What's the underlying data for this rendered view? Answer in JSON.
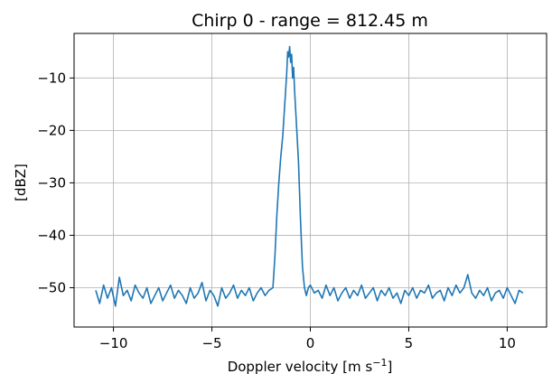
{
  "chart_data": {
    "type": "line",
    "title": "Chirp 0 - range = 812.45 m",
    "xlabel": "Doppler velocity [m s",
    "xlabel_sup": "−1",
    "xlabel_tail": "]",
    "ylabel": "[dBZ]",
    "xlim": [
      -12,
      12
    ],
    "ylim": [
      -57.5,
      -1.5
    ],
    "xticks": [
      -10,
      -5,
      0,
      5,
      10
    ],
    "xtick_labels": [
      "−10",
      "−5",
      "0",
      "5",
      "10"
    ],
    "yticks": [
      -50,
      -40,
      -30,
      -20,
      -10
    ],
    "ytick_labels": [
      "−50",
      "−40",
      "−30",
      "−20",
      "−10"
    ],
    "grid": true,
    "legend": "none",
    "series_color": "#1f77b4",
    "series": [
      {
        "x": [
          -10.9,
          -10.7,
          -10.5,
          -10.3,
          -10.1,
          -9.9,
          -9.7,
          -9.5,
          -9.3,
          -9.1,
          -8.9,
          -8.7,
          -8.5,
          -8.3,
          -8.1,
          -7.9,
          -7.7,
          -7.5,
          -7.3,
          -7.1,
          -6.9,
          -6.7,
          -6.5,
          -6.3,
          -6.1,
          -5.9,
          -5.7,
          -5.5,
          -5.3,
          -5.1,
          -4.9,
          -4.7,
          -4.5,
          -4.3,
          -4.1,
          -3.9,
          -3.7,
          -3.5,
          -3.3,
          -3.1,
          -2.9,
          -2.7,
          -2.5,
          -2.3,
          -2.1,
          -1.9,
          -1.8,
          -1.7,
          -1.6,
          -1.5,
          -1.4,
          -1.3,
          -1.25,
          -1.2,
          -1.15,
          -1.1,
          -1.05,
          -1.0,
          -0.95,
          -0.9,
          -0.85,
          -0.8,
          -0.7,
          -0.6,
          -0.5,
          -0.4,
          -0.3,
          -0.2,
          -0.1,
          0.0,
          0.2,
          0.4,
          0.6,
          0.8,
          1.0,
          1.2,
          1.4,
          1.6,
          1.8,
          2.0,
          2.2,
          2.4,
          2.6,
          2.8,
          3.0,
          3.2,
          3.4,
          3.6,
          3.8,
          4.0,
          4.2,
          4.4,
          4.6,
          4.8,
          5.0,
          5.2,
          5.4,
          5.6,
          5.8,
          6.0,
          6.2,
          6.4,
          6.6,
          6.8,
          7.0,
          7.2,
          7.4,
          7.6,
          7.8,
          8.0,
          8.2,
          8.4,
          8.6,
          8.8,
          9.0,
          9.2,
          9.4,
          9.6,
          9.8,
          10.0,
          10.2,
          10.4,
          10.6,
          10.8
        ],
        "y": [
          -50.5,
          -53.0,
          -49.5,
          -52.0,
          -50.0,
          -53.5,
          -48.0,
          -51.5,
          -50.5,
          -52.5,
          -49.5,
          -51.0,
          -52.0,
          -50.0,
          -53.0,
          -51.5,
          -50.0,
          -52.5,
          -51.0,
          -49.5,
          -52.0,
          -50.5,
          -51.5,
          -53.0,
          -50.0,
          -52.0,
          -51.0,
          -49.0,
          -52.5,
          -50.5,
          -51.5,
          -53.5,
          -50.0,
          -52.0,
          -51.0,
          -49.5,
          -52.0,
          -50.5,
          -51.5,
          -50.0,
          -52.5,
          -51.0,
          -50.0,
          -51.5,
          -50.5,
          -50.0,
          -44.0,
          -36.0,
          -30.0,
          -25.0,
          -21.0,
          -15.0,
          -12.0,
          -9.0,
          -5.0,
          -6.0,
          -4.0,
          -7.0,
          -5.5,
          -10.0,
          -8.0,
          -12.5,
          -19.0,
          -26.0,
          -37.0,
          -46.0,
          -50.0,
          -51.5,
          -50.0,
          -49.5,
          -51.0,
          -50.5,
          -52.0,
          -49.5,
          -51.5,
          -50.0,
          -52.5,
          -51.0,
          -50.0,
          -52.0,
          -50.5,
          -51.5,
          -49.5,
          -52.0,
          -51.0,
          -50.0,
          -52.5,
          -50.5,
          -51.5,
          -50.0,
          -52.0,
          -51.0,
          -53.0,
          -50.5,
          -51.5,
          -50.0,
          -52.0,
          -50.5,
          -51.0,
          -49.5,
          -52.0,
          -51.0,
          -50.5,
          -52.5,
          -50.0,
          -51.5,
          -49.5,
          -51.0,
          -50.0,
          -47.5,
          -51.0,
          -52.0,
          -50.5,
          -51.5,
          -50.0,
          -52.5,
          -51.0,
          -50.5,
          -52.0,
          -50.0,
          -51.5,
          -53.0,
          -50.5,
          -51.0
        ]
      }
    ]
  }
}
